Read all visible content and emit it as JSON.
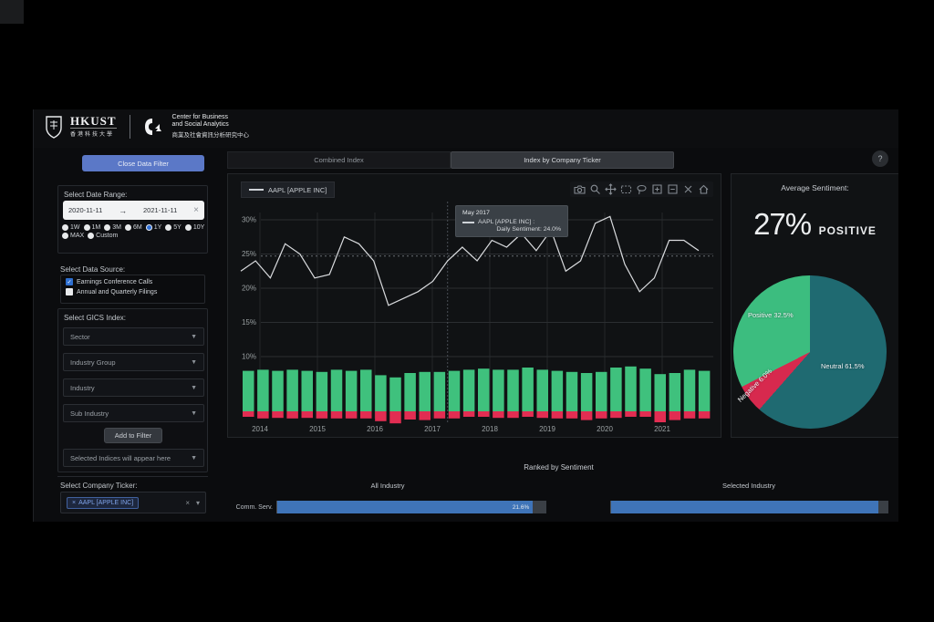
{
  "header": {
    "hkust_name": "HKUST",
    "hkust_cn": "香港科技大學",
    "cba_line1": "Center for Business",
    "cba_line2": "and Social Analytics",
    "cba_cn": "商業及社會資訊分析研究中心"
  },
  "sidebar": {
    "close_button": "Close Data Filter",
    "date_range": {
      "label": "Select Date Range:",
      "start": "2020-11-11",
      "arrow": "→",
      "end": "2021-11-11",
      "clear": "×",
      "presets": [
        "1W",
        "1M",
        "3M",
        "6M",
        "1Y",
        "5Y",
        "10Y",
        "MAX",
        "Custom"
      ],
      "selected_preset": "1Y"
    },
    "data_source": {
      "label": "Select Data Source:",
      "options": [
        {
          "label": "Earnings Conference Calls",
          "checked": true
        },
        {
          "label": "Annual and Quarterly Filings",
          "checked": false
        }
      ]
    },
    "gics": {
      "label": "Select GICS Index:",
      "dropdowns": [
        "Sector",
        "Industry Group",
        "Industry",
        "Sub Industry"
      ],
      "add_button": "Add to Filter",
      "selected_placeholder": "Selected Indices will appear here"
    },
    "ticker": {
      "label": "Select Company Ticker:",
      "tag_remove": "×",
      "tag": "AAPL [APPLE INC]",
      "clear": "×",
      "caret": "▾"
    }
  },
  "main": {
    "tabs": [
      {
        "label": "Combined Index",
        "active": false
      },
      {
        "label": "Index by Company Ticker",
        "active": true
      }
    ],
    "help": "?",
    "modebar_icons": [
      "camera-icon",
      "zoom-icon",
      "pan-icon",
      "box-select-icon",
      "lasso-icon",
      "zoom-in-icon",
      "zoom-out-icon",
      "autoscale-icon",
      "reset-axes-icon"
    ]
  },
  "chart_data": [
    {
      "type": "line",
      "legend": "AAPL [APPLE INC]",
      "x_start": 2014.0,
      "x_step": 0.25,
      "values": [
        22.5,
        24,
        21.5,
        26.5,
        25,
        21.5,
        22,
        27.5,
        26.5,
        24,
        17.5,
        18.5,
        19.5,
        21,
        24,
        26,
        24,
        27,
        26,
        28,
        25.5,
        28.5,
        22.5,
        24,
        29.5,
        30.5,
        23.5,
        19.5,
        21.5,
        27,
        27,
        25.5
      ],
      "yticks": [
        "30%",
        "25%",
        "20%",
        "15%",
        "10%"
      ],
      "ytick_values": [
        30,
        25,
        20,
        15,
        10
      ],
      "xticks": [
        "2014",
        "2015",
        "2016",
        "2017",
        "2018",
        "2019",
        "2020",
        "2021"
      ],
      "ylim": [
        10,
        30
      ],
      "average_line": 24.7,
      "line_color": "#d9dbde",
      "tooltip": {
        "date": "May 2017",
        "series": "AAPL [APPLE INC] :",
        "value_text": "Daily Sentiment: 24.0%"
      }
    },
    {
      "type": "bar",
      "note": "positive above baseline, negative below",
      "categories": [
        "2014",
        "2015",
        "2016",
        "2017",
        "2018",
        "2019",
        "2020",
        "2021"
      ],
      "series": [
        {
          "name": "Positive",
          "color": "#3fc17d",
          "values": [
            37,
            38,
            37,
            38,
            37,
            36,
            38,
            37,
            38,
            33,
            31,
            35,
            36,
            36,
            37,
            38,
            39,
            38,
            38,
            40,
            38,
            37,
            36,
            35,
            36,
            40,
            41,
            39,
            34,
            35,
            38,
            37
          ]
        },
        {
          "name": "Negative",
          "color": "#e22d52",
          "values": [
            5,
            6.5,
            6,
            6.5,
            6,
            6.5,
            6.5,
            6.5,
            6.5,
            9,
            11,
            7.5,
            8,
            6.5,
            6.5,
            5,
            5,
            6,
            6,
            5,
            6,
            6.5,
            6.5,
            8,
            6.5,
            6,
            5,
            5,
            10,
            8,
            6.5,
            6.5
          ]
        }
      ]
    },
    {
      "type": "pie",
      "title": "Average Sentiment:",
      "headline": {
        "value": "27%",
        "label": "POSITIVE"
      },
      "slices": [
        {
          "label": "Neutral",
          "value": 61.5,
          "display": "Neutral 61.5%",
          "color": "#1f6a71"
        },
        {
          "label": "Negative",
          "value": 6.0,
          "display": "Negative 6.0%",
          "color": "#d7294e"
        },
        {
          "label": "Positive",
          "value": 32.5,
          "display": "Positive 32.5%",
          "color": "#3cbd7f"
        }
      ]
    },
    {
      "type": "bar",
      "orientation": "horizontal",
      "title": "Ranked by Sentiment",
      "groups": [
        {
          "title": "All Industry",
          "rows": [
            {
              "label": "Comm. Serv.",
              "value": "21.6%",
              "fill_pct": 95
            }
          ]
        },
        {
          "title": "Selected Industry",
          "rows": [
            {
              "fill_pct": 96.5
            }
          ]
        }
      ]
    }
  ]
}
